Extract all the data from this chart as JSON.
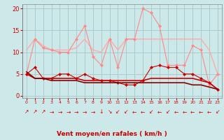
{
  "x": [
    0,
    1,
    2,
    3,
    4,
    5,
    6,
    7,
    8,
    9,
    10,
    11,
    12,
    13,
    14,
    15,
    16,
    17,
    18,
    19,
    20,
    21,
    22,
    23
  ],
  "bg_color": "#cce8e8",
  "grid_color": "#aacccc",
  "xlabel": "Vent moyen/en rafales ( km/h )",
  "xlabel_color": "#cc0000",
  "tick_color": "#cc0000",
  "ylim": [
    -0.5,
    21
  ],
  "yticks": [
    0,
    5,
    10,
    15,
    20
  ],
  "series": [
    {
      "y": [
        10.5,
        13,
        11.5,
        10.5,
        10.5,
        10.5,
        11,
        13,
        10.5,
        10,
        13,
        10.5,
        13,
        13,
        13,
        13,
        13,
        13,
        13,
        13,
        13,
        13,
        10.5,
        5
      ],
      "color": "#ffaaaa",
      "lw": 1.0,
      "marker": null
    },
    {
      "y": [
        5,
        13,
        11,
        10.5,
        10,
        10,
        13,
        16,
        9,
        7,
        13,
        6.5,
        13,
        13,
        20,
        19,
        16,
        7,
        7,
        7,
        11.5,
        10.5,
        2.5,
        5
      ],
      "color": "#ff8888",
      "lw": 0.8,
      "marker": "D"
    },
    {
      "y": [
        5,
        6.5,
        4,
        4,
        5,
        5,
        4,
        5,
        4,
        3.5,
        3.5,
        3,
        2.5,
        2.5,
        3.5,
        6.5,
        7,
        6.5,
        6.5,
        5,
        5,
        4,
        3,
        1.5
      ],
      "color": "#cc0000",
      "lw": 0.8,
      "marker": "D"
    },
    {
      "y": [
        5,
        4,
        4,
        4,
        4,
        4,
        4,
        3.5,
        3.5,
        3.5,
        3.5,
        3.5,
        3.5,
        3.5,
        3.5,
        4,
        4,
        4,
        4,
        4,
        4,
        3.5,
        3,
        1.5
      ],
      "color": "#cc0000",
      "lw": 1.2,
      "marker": null
    },
    {
      "y": [
        5.5,
        4,
        4,
        3.5,
        3.5,
        3.5,
        3.5,
        3,
        3,
        3,
        3,
        3,
        3,
        3,
        3,
        3,
        3,
        3,
        3,
        3,
        2.5,
        2.5,
        2,
        1.5
      ],
      "color": "#880000",
      "lw": 1.2,
      "marker": null
    }
  ],
  "wind_arrows": [
    "↗",
    "↗",
    "↗",
    "→",
    "→",
    "→",
    "→",
    "→",
    "→",
    "↓",
    "↘",
    "↙",
    "↙",
    "←",
    "←",
    "↙",
    "←",
    "↙",
    "←",
    "←",
    "←",
    "←",
    "←",
    "↙"
  ],
  "arrow_color": "#cc0000",
  "arrow_fontsize": 5.5
}
